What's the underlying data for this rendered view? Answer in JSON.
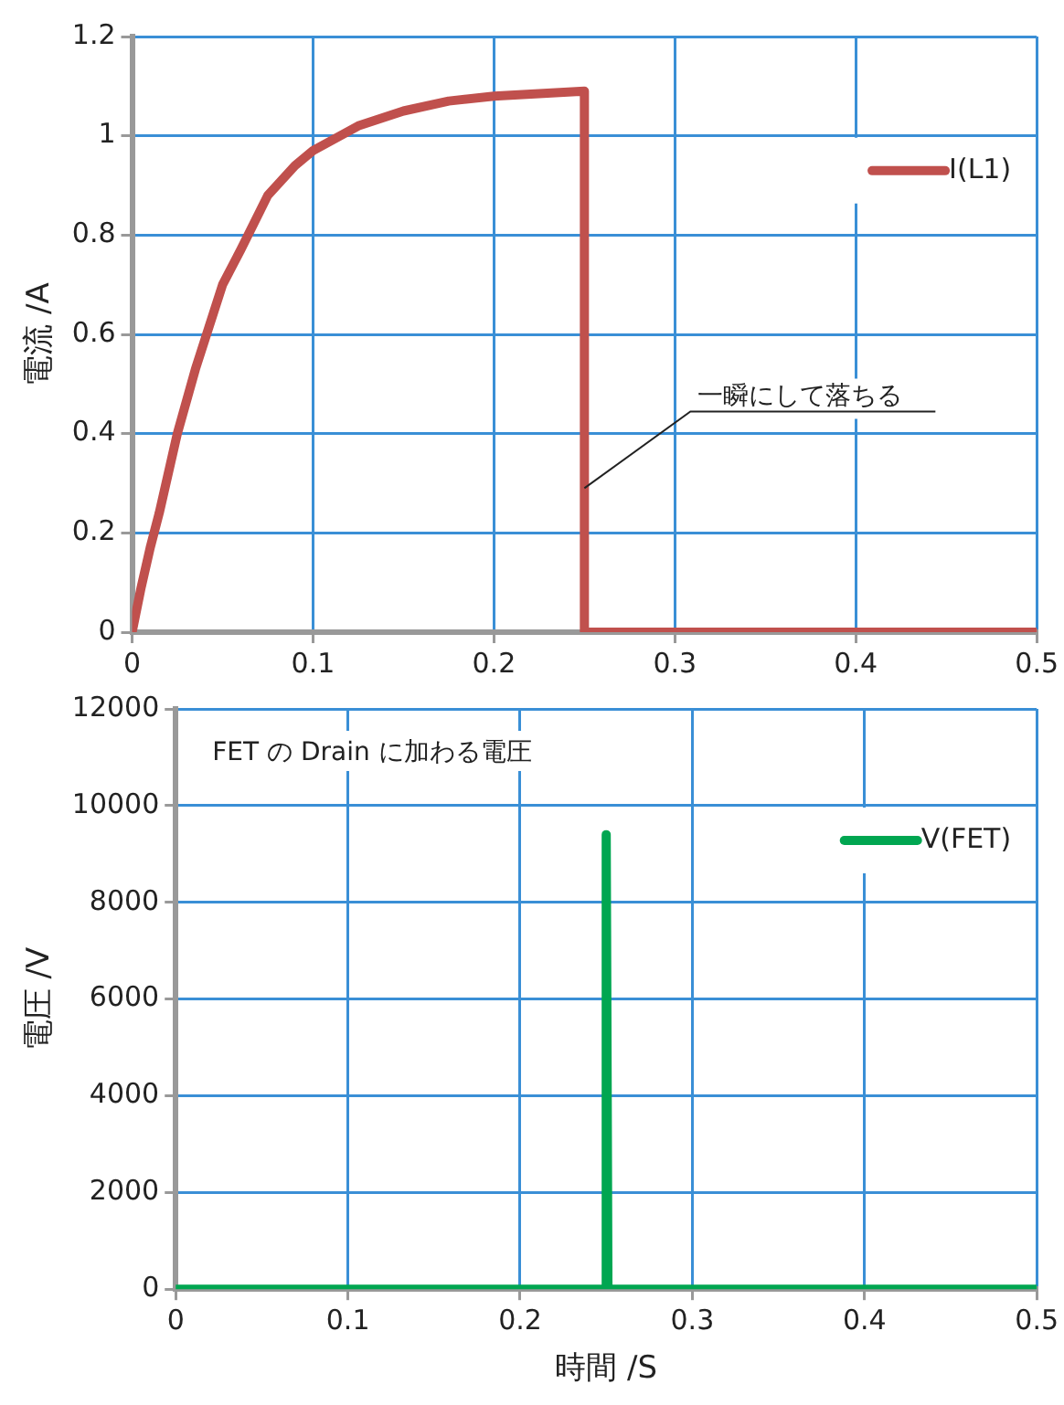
{
  "chart_data": [
    {
      "type": "line",
      "ylabel": "電流 /A",
      "xlim": [
        0,
        0.5
      ],
      "xticks": [
        0,
        0.1,
        0.2,
        0.3,
        0.4,
        0.5
      ],
      "ylim": [
        0,
        1.2
      ],
      "yticks": [
        0,
        0.2,
        0.4,
        0.6,
        0.8,
        1,
        1.2
      ],
      "grid": true,
      "legend": "top right",
      "marker": "none",
      "annotations": [
        {
          "text": "一瞬にして落ちる",
          "x": 0.25,
          "y": 0.29
        }
      ],
      "series": [
        {
          "name": "I(L1)",
          "color": "#c0504d",
          "x": [
            0,
            0.005,
            0.01,
            0.015,
            0.025,
            0.035,
            0.05,
            0.06,
            0.075,
            0.09,
            0.1,
            0.125,
            0.15,
            0.175,
            0.2,
            0.225,
            0.25,
            0.25,
            0.5
          ],
          "values": [
            0,
            0.09,
            0.17,
            0.24,
            0.4,
            0.53,
            0.7,
            0.77,
            0.88,
            0.94,
            0.97,
            1.02,
            1.05,
            1.07,
            1.08,
            1.085,
            1.09,
            0,
            0
          ]
        }
      ]
    },
    {
      "type": "line",
      "xlabel": "時間 /S",
      "ylabel": "電圧 /V",
      "xlim": [
        0,
        0.5
      ],
      "xticks": [
        0,
        0.1,
        0.2,
        0.3,
        0.4,
        0.5
      ],
      "ylim": [
        0,
        12000
      ],
      "yticks": [
        0,
        2000,
        4000,
        6000,
        8000,
        10000,
        12000
      ],
      "grid": true,
      "legend": "top right",
      "marker": "none",
      "annotations": [
        "FET の Drain に加わる電圧"
      ],
      "series": [
        {
          "name": "V(FET)",
          "color": "#00a651",
          "x": [
            0,
            0.25,
            0.25,
            0.251,
            0.5
          ],
          "values": [
            0,
            0,
            9400,
            0,
            0
          ]
        }
      ]
    }
  ]
}
